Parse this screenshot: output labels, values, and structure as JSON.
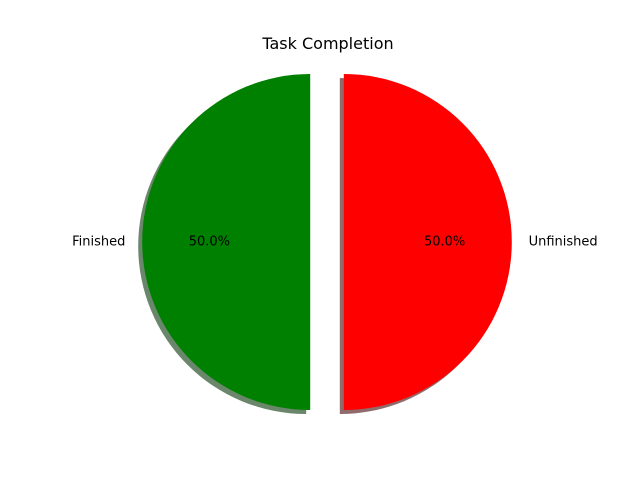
{
  "chart_data": {
    "type": "pie",
    "title": "Task Completion",
    "labels": [
      "Finished",
      "Unfinished"
    ],
    "values": [
      50,
      50
    ],
    "percent_labels": [
      "50.0%",
      "50.0%"
    ],
    "colors": [
      "#008000",
      "#ff0000"
    ],
    "shadow_colors": [
      "#6b876b",
      "#8f6b6b"
    ],
    "exploded": [
      true,
      true
    ],
    "shadow": true,
    "start_angle_deg": 90,
    "direction": "counterclockwise",
    "legend": false
  }
}
